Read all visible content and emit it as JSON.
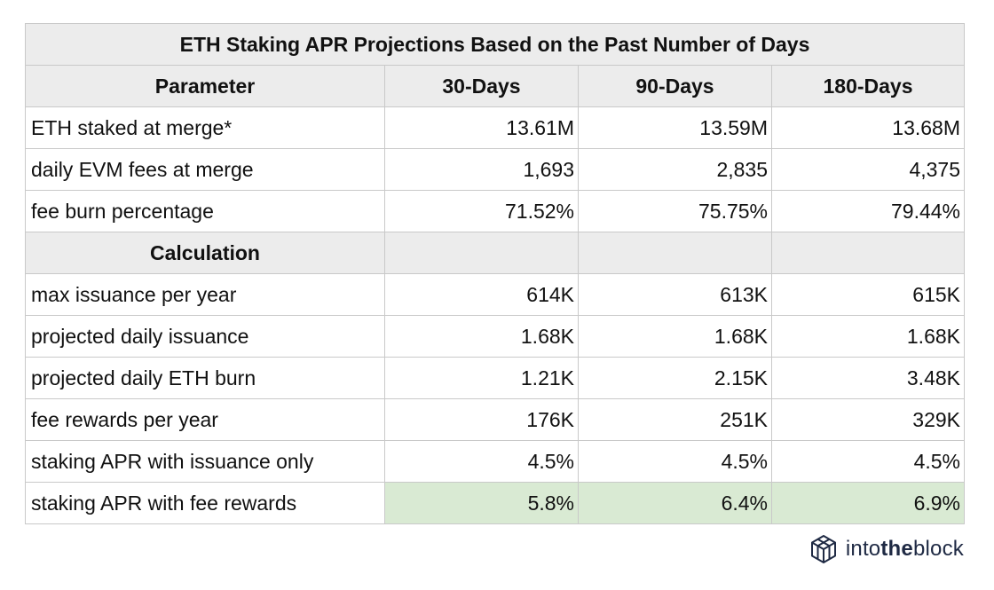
{
  "title": "ETH Staking APR Projections Based on the Past Number of Days",
  "headers": [
    "Parameter",
    "30-Days",
    "90-Days",
    "180-Days"
  ],
  "parameters": [
    {
      "label": "ETH staked at merge*",
      "values": [
        "13.61M",
        "13.59M",
        "13.68M"
      ]
    },
    {
      "label": "daily EVM fees at merge",
      "values": [
        "1,693",
        "2,835",
        "4,375"
      ]
    },
    {
      "label": "fee burn percentage",
      "values": [
        "71.52%",
        "75.75%",
        "79.44%"
      ]
    }
  ],
  "calculation_label": "Calculation",
  "calculations": [
    {
      "label": "max issuance per year",
      "values": [
        "614K",
        "613K",
        "615K"
      ]
    },
    {
      "label": "projected daily issuance",
      "values": [
        "1.68K",
        "1.68K",
        "1.68K"
      ]
    },
    {
      "label": "projected daily ETH burn",
      "values": [
        "1.21K",
        "2.15K",
        "3.48K"
      ]
    },
    {
      "label": "fee rewards per year",
      "values": [
        "176K",
        "251K",
        "329K"
      ]
    },
    {
      "label": "staking APR with issuance only",
      "values": [
        "4.5%",
        "4.5%",
        "4.5%"
      ]
    },
    {
      "label": "staking APR with fee rewards",
      "values": [
        "5.8%",
        "6.4%",
        "6.9%"
      ]
    }
  ],
  "logo": {
    "text_part1": "into",
    "text_part2": "the",
    "text_part3": "block",
    "icon": "cube-network-icon"
  },
  "colors": {
    "header_bg": "#ececec",
    "highlight_bg": "#d9ead3",
    "border": "#c9c9c9",
    "logo": "#1f2a44"
  }
}
